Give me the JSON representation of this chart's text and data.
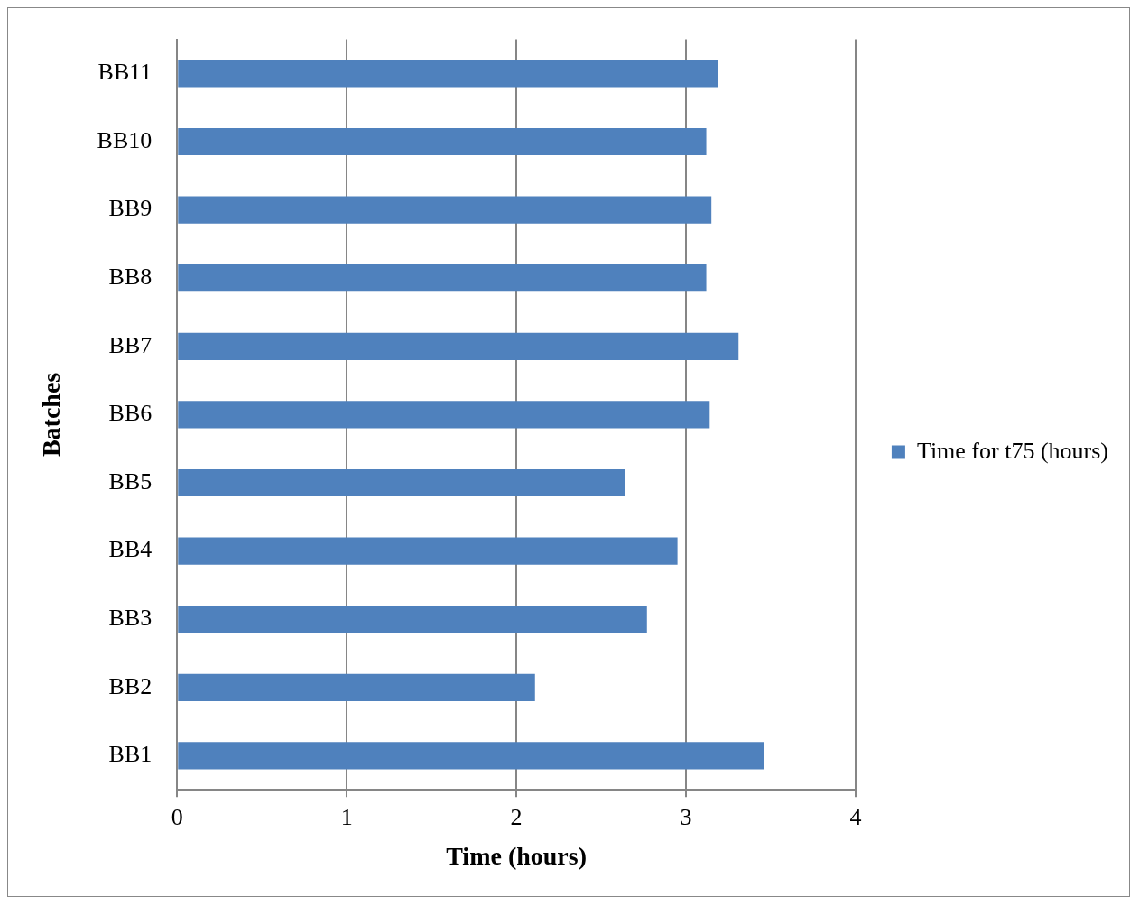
{
  "chart_data": {
    "type": "bar",
    "orientation": "horizontal",
    "xlabel": "Time (hours)",
    "ylabel": "Batches",
    "categories": [
      "BB11",
      "BB10",
      "BB9",
      "BB8",
      "BB7",
      "BB6",
      "BB5",
      "BB4",
      "BB3",
      "BB2",
      "BB1"
    ],
    "series": [
      {
        "name": "Time for t75 (hours)",
        "color": "#4f81bd",
        "values": [
          3.19,
          3.12,
          3.15,
          3.12,
          3.31,
          3.14,
          2.64,
          2.95,
          2.77,
          2.11,
          3.46
        ]
      }
    ],
    "xlim": [
      0,
      4
    ],
    "xticks": [
      0,
      1,
      2,
      3,
      4
    ],
    "grid": "x",
    "legend": "right"
  }
}
